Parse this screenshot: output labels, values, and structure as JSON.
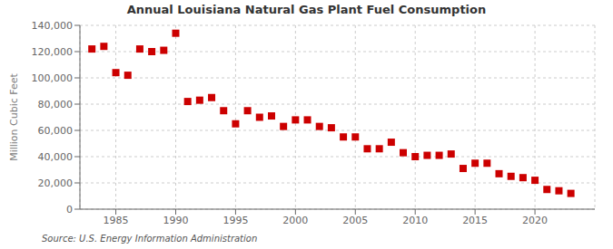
{
  "chart_data": {
    "type": "scatter",
    "title": "Annual Louisiana Natural Gas Plant Fuel Consumption",
    "ylabel": "Million Cubic Feet",
    "annotation": "Source: U.S. Energy Information Administration",
    "x": [
      1983,
      1984,
      1985,
      1986,
      1987,
      1988,
      1989,
      1990,
      1991,
      1992,
      1993,
      1994,
      1995,
      1996,
      1997,
      1998,
      1999,
      2000,
      2001,
      2002,
      2003,
      2004,
      2005,
      2006,
      2007,
      2008,
      2009,
      2010,
      2011,
      2012,
      2013,
      2014,
      2015,
      2016,
      2017,
      2018,
      2019,
      2020,
      2021,
      2022,
      2023
    ],
    "values": [
      122000,
      124000,
      104000,
      102000,
      122000,
      120000,
      121000,
      134000,
      82000,
      83000,
      85000,
      75000,
      65000,
      75000,
      70000,
      71000,
      63000,
      68000,
      68000,
      63000,
      62000,
      55000,
      55000,
      46000,
      46000,
      51000,
      43000,
      40000,
      41000,
      41000,
      42000,
      31000,
      35000,
      35000,
      27000,
      25000,
      24000,
      22000,
      15000,
      14000,
      12000
    ],
    "color": "#cc0000",
    "marker": "square",
    "grid": true,
    "xlim": [
      1982,
      2025
    ],
    "xticks": [
      1985,
      1990,
      1995,
      2000,
      2005,
      2010,
      2015,
      2020
    ],
    "ylim": [
      0,
      140000
    ],
    "yticks": [
      0,
      {
        "value": 20000,
        "label": "20,000"
      },
      {
        "value": 40000,
        "label": "40,000"
      },
      {
        "value": 60000,
        "label": "60,000"
      },
      {
        "value": 80000,
        "label": "80,000"
      },
      {
        "value": 100000,
        "label": "100,000"
      },
      {
        "value": 120000,
        "label": "120,000"
      },
      {
        "value": 140000,
        "label": "140,000"
      }
    ]
  }
}
